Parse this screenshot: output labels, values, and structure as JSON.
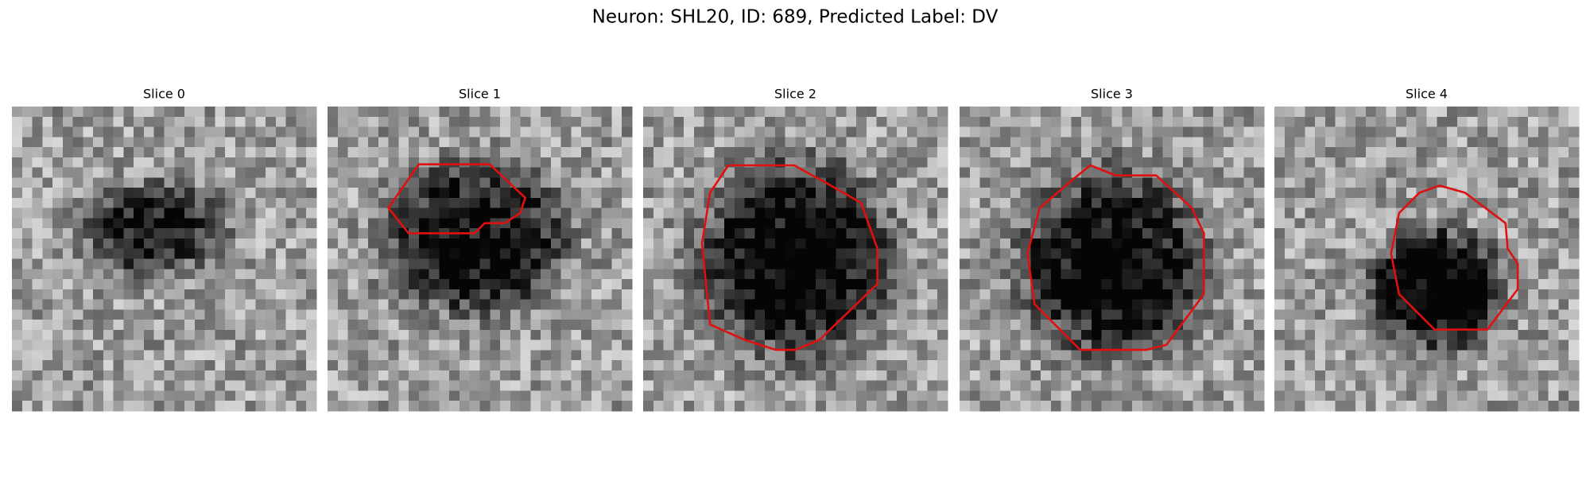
{
  "title": "Neuron: SHL20, ID: 689, Predicted Label: DV",
  "panels": [
    {
      "title": "Slice 0"
    },
    {
      "title": "Slice 1"
    },
    {
      "title": "Slice 2"
    },
    {
      "title": "Slice 3"
    },
    {
      "title": "Slice 4"
    }
  ]
}
